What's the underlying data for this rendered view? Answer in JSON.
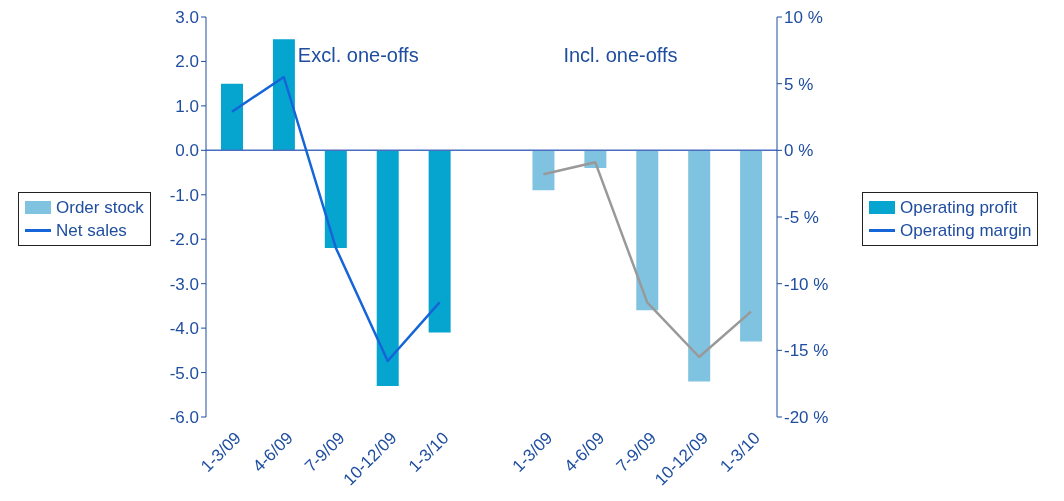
{
  "chart_data": {
    "type": "bar",
    "categories": [
      "1-3/09",
      "4-6/09",
      "7-9/09",
      "10-12/09",
      "1-3/10",
      null,
      "1-3/09",
      "4-6/09",
      "7-9/09",
      "10-12/09",
      "1-3/10"
    ],
    "series": [
      {
        "name": "Operating profit",
        "color": "#06a5d0",
        "colors": [
          "#06a5d0",
          "#06a5d0",
          "#06a5d0",
          "#06a5d0",
          "#06a5d0",
          "#06a5d0",
          "#80c3e0",
          "#80c3e0",
          "#80c3e0",
          "#80c3e0",
          "#80c3e0"
        ],
        "values": [
          1.5,
          2.5,
          -2.2,
          -5.3,
          -4.1,
          null,
          -0.9,
          -0.4,
          -3.6,
          -5.2,
          -4.3
        ]
      },
      {
        "name": "Operating margin",
        "type": "line",
        "axis": "y2",
        "color": "#1565d8",
        "values": [
          2.9,
          5.5,
          -7.3,
          -15.8,
          -11.4,
          null,
          null,
          null,
          null,
          null,
          null
        ]
      },
      {
        "type": "line",
        "axis": "y2",
        "color": "#999999",
        "values": [
          null,
          null,
          null,
          null,
          null,
          null,
          -1.8,
          -0.9,
          -11.4,
          -15.5,
          -12.1
        ]
      }
    ],
    "ylim": [
      -6,
      3
    ],
    "yticks": [
      {
        "value": 3,
        "label": "3.0"
      },
      {
        "value": 2,
        "label": "2.0"
      },
      {
        "value": 1,
        "label": "1.0"
      },
      {
        "value": 0,
        "label": "0.0"
      },
      {
        "value": -1,
        "label": "-1.0"
      },
      {
        "value": -2,
        "label": "-2.0"
      },
      {
        "value": -3,
        "label": "-3.0"
      },
      {
        "value": -4,
        "label": "-4.0"
      },
      {
        "value": -5,
        "label": "-5.0"
      },
      {
        "value": -6,
        "label": "-6.0"
      }
    ],
    "y2lim": [
      -20,
      10
    ],
    "y2ticks": [
      {
        "value": 10,
        "label": "10 %"
      },
      {
        "value": 5,
        "label": "5 %"
      },
      {
        "value": 0,
        "label": "0 %"
      },
      {
        "value": -5,
        "label": "-5 %"
      },
      {
        "value": -10,
        "label": "-10 %"
      },
      {
        "value": -15,
        "label": "-15 %"
      },
      {
        "value": -20,
        "label": "-20 %"
      }
    ],
    "annotations": [
      "Excl. one-offs",
      "Incl. one-offs",
      "Order stock",
      "Net sales"
    ],
    "ref_lines": [
      {
        "axis": "y",
        "value": 0,
        "color": "#4a6fc0"
      }
    ],
    "legend": "right",
    "marker": "none"
  }
}
